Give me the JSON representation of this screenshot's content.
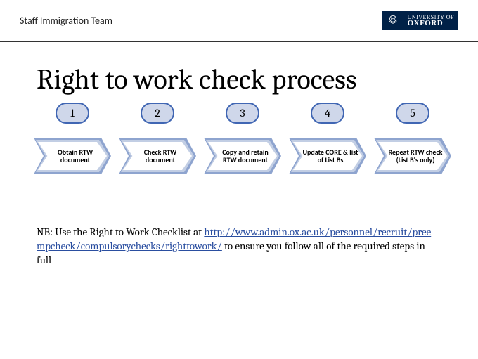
{
  "header": {
    "team": "Staff Immigration Team",
    "logo_top": "UNIVERSITY OF",
    "logo_bottom": "OXFORD",
    "logo_bg": "#002147",
    "logo_fg": "#ffffff"
  },
  "title": "Right to work check process",
  "steps": [
    {
      "n": "1",
      "label": "Obtain RTW document"
    },
    {
      "n": "2",
      "label": "Check RTW document"
    },
    {
      "n": "3",
      "label": "Copy and retain RTW document"
    },
    {
      "n": "4",
      "label": "Update CORE & list of List Bs"
    },
    {
      "n": "5",
      "label": "Repeat RTW check\n(List B's only)"
    }
  ],
  "flow_style": {
    "badge_border": "#4066b3",
    "badge_fill": "#cfd7ea",
    "arrow_outer": "#8ea4cf",
    "arrow_mid": "#c2cee4",
    "arrow_inner": "#ffffff",
    "text_color": "#000000"
  },
  "nb": {
    "prefix": "NB: Use the Right to Work Checklist  at ",
    "link_text": "http://www.admin.ox.ac.uk/personnel/recruit/preempcheck/compulsorychecks/righttowork/",
    "link_href": "http://www.admin.ox.ac.uk/personnel/recruit/preempcheck/compulsorychecks/righttowork/",
    "suffix": " to ensure you follow all of the required steps in full",
    "link_color": "#2a4ea0"
  }
}
